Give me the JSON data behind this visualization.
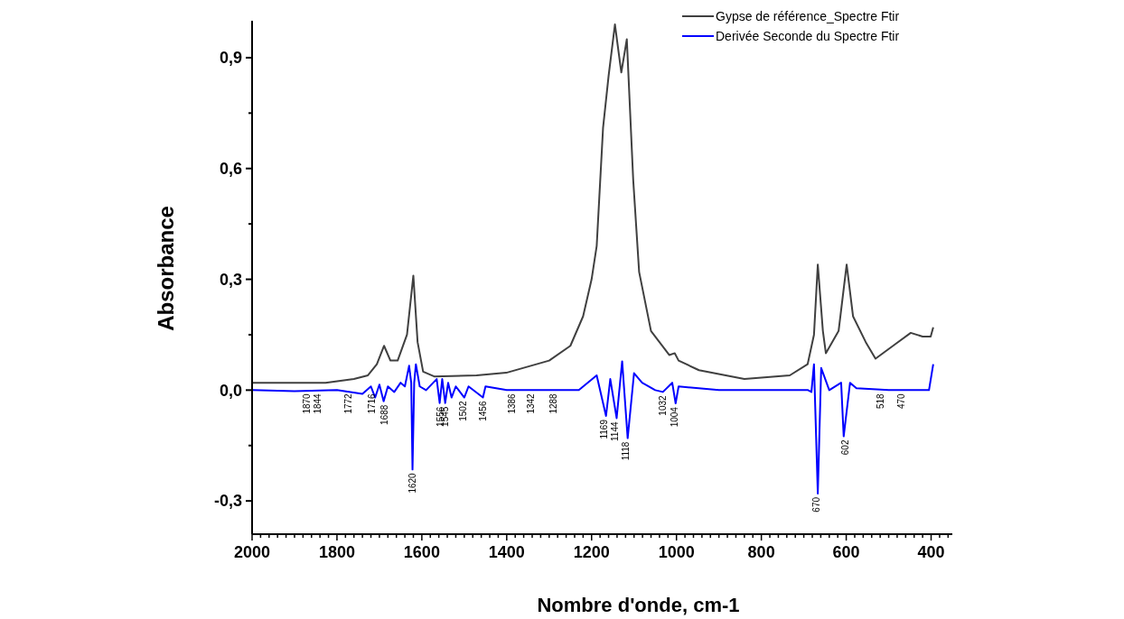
{
  "chart_data": {
    "type": "line",
    "xlabel": "Nombre d'onde, cm-1",
    "ylabel": "Absorbance",
    "xlim": [
      2000,
      350
    ],
    "ylim": [
      -0.39,
      1.0
    ],
    "xticks": [
      2000,
      {
        "value": 1980,
        "label": null
      },
      {
        "value": 1960,
        "label": null
      },
      {
        "value": 1940,
        "label": null
      },
      {
        "value": 1920,
        "label": null
      },
      {
        "value": 1900,
        "label": null
      },
      {
        "value": 1880,
        "label": null
      },
      {
        "value": 1860,
        "label": null
      },
      {
        "value": 1840,
        "label": null
      },
      {
        "value": 1820,
        "label": null
      },
      1800,
      {
        "value": 1780,
        "label": null
      },
      {
        "value": 1760,
        "label": null
      },
      {
        "value": 1740,
        "label": null
      },
      {
        "value": 1720,
        "label": null
      },
      {
        "value": 1700,
        "label": null
      },
      {
        "value": 1680,
        "label": null
      },
      {
        "value": 1660,
        "label": null
      },
      {
        "value": 1640,
        "label": null
      },
      {
        "value": 1620,
        "label": null
      },
      1600,
      {
        "value": 1580,
        "label": null
      },
      {
        "value": 1560,
        "label": null
      },
      {
        "value": 1540,
        "label": null
      },
      {
        "value": 1520,
        "label": null
      },
      {
        "value": 1500,
        "label": null
      },
      {
        "value": 1480,
        "label": null
      },
      {
        "value": 1460,
        "label": null
      },
      {
        "value": 1440,
        "label": null
      },
      {
        "value": 1420,
        "label": null
      },
      1400,
      {
        "value": 1380,
        "label": null
      },
      {
        "value": 1360,
        "label": null
      },
      {
        "value": 1340,
        "label": null
      },
      {
        "value": 1320,
        "label": null
      },
      {
        "value": 1300,
        "label": null
      },
      {
        "value": 1280,
        "label": null
      },
      {
        "value": 1260,
        "label": null
      },
      {
        "value": 1240,
        "label": null
      },
      {
        "value": 1220,
        "label": null
      },
      1200,
      {
        "value": 1180,
        "label": null
      },
      {
        "value": 1160,
        "label": null
      },
      {
        "value": 1140,
        "label": null
      },
      {
        "value": 1120,
        "label": null
      },
      {
        "value": 1100,
        "label": null
      },
      {
        "value": 1080,
        "label": null
      },
      {
        "value": 1060,
        "label": null
      },
      {
        "value": 1040,
        "label": null
      },
      {
        "value": 1020,
        "label": null
      },
      1000,
      {
        "value": 980,
        "label": null
      },
      {
        "value": 960,
        "label": null
      },
      {
        "value": 940,
        "label": null
      },
      {
        "value": 920,
        "label": null
      },
      {
        "value": 900,
        "label": null
      },
      {
        "value": 880,
        "label": null
      },
      {
        "value": 860,
        "label": null
      },
      {
        "value": 840,
        "label": null
      },
      {
        "value": 820,
        "label": null
      },
      800,
      {
        "value": 780,
        "label": null
      },
      {
        "value": 760,
        "label": null
      },
      {
        "value": 740,
        "label": null
      },
      {
        "value": 720,
        "label": null
      },
      {
        "value": 700,
        "label": null
      },
      {
        "value": 680,
        "label": null
      },
      {
        "value": 660,
        "label": null
      },
      {
        "value": 640,
        "label": null
      },
      {
        "value": 620,
        "label": null
      },
      600,
      {
        "value": 580,
        "label": null
      },
      {
        "value": 560,
        "label": null
      },
      {
        "value": 540,
        "label": null
      },
      {
        "value": 520,
        "label": null
      },
      {
        "value": 500,
        "label": null
      },
      {
        "value": 480,
        "label": null
      },
      {
        "value": 460,
        "label": null
      },
      {
        "value": 440,
        "label": null
      },
      {
        "value": 420,
        "label": null
      },
      400,
      {
        "value": 380,
        "label": null
      },
      {
        "value": 360,
        "label": null
      }
    ],
    "yticks": [
      {
        "value": -0.3,
        "label": "-0,3"
      },
      {
        "value": -0.15,
        "label": null
      },
      {
        "value": 0,
        "label": "0,0"
      },
      {
        "value": 0.15,
        "label": null
      },
      {
        "value": 0.3,
        "label": "0,3"
      },
      {
        "value": 0.45,
        "label": null
      },
      {
        "value": 0.6,
        "label": "0,6"
      },
      {
        "value": 0.75,
        "label": null
      },
      {
        "value": 0.9,
        "label": "0,9"
      }
    ],
    "legend": "top right",
    "grid": false,
    "series": [
      {
        "name": "Gypse de référence_Spectre Ftir",
        "color": "#404040",
        "x": [
          2000,
          1900,
          1827,
          1760,
          1727,
          1706,
          1689,
          1674,
          1657,
          1635,
          1620,
          1610,
          1597,
          1571,
          1471,
          1401,
          1300,
          1250,
          1220,
          1200,
          1188,
          1173,
          1160,
          1145,
          1130,
          1117,
          1102,
          1088,
          1060,
          1017,
          1004,
          995,
          947,
          840,
          733,
          691,
          676,
          667,
          655,
          648,
          618,
          599,
          584,
          554,
          531,
          484,
          448,
          420,
          401,
          395
        ],
        "values": [
          0.02,
          0.02,
          0.02,
          0.03,
          0.04,
          0.07,
          0.12,
          0.08,
          0.08,
          0.15,
          0.31,
          0.13,
          0.05,
          0.037,
          0.04,
          0.047,
          0.08,
          0.12,
          0.2,
          0.3,
          0.39,
          0.71,
          0.85,
          0.99,
          0.86,
          0.95,
          0.57,
          0.32,
          0.16,
          0.095,
          0.1,
          0.08,
          0.054,
          0.03,
          0.04,
          0.07,
          0.15,
          0.34,
          0.16,
          0.1,
          0.16,
          0.34,
          0.2,
          0.13,
          0.085,
          0.125,
          0.155,
          0.145,
          0.145,
          0.17
        ]
      },
      {
        "name": "Derivée Seconde du Spectre Ftir",
        "color": "#0000ff",
        "x": [
          2000,
          1900,
          1800,
          1740,
          1720,
          1710,
          1700,
          1690,
          1680,
          1665,
          1650,
          1640,
          1630,
          1625,
          1622,
          1618,
          1614,
          1605,
          1590,
          1565,
          1558,
          1552,
          1545,
          1538,
          1530,
          1520,
          1500,
          1490,
          1456,
          1450,
          1400,
          1300,
          1230,
          1188,
          1166,
          1156,
          1141,
          1128,
          1115,
          1100,
          1081,
          1050,
          1032,
          1010,
          1002,
          995,
          900,
          720,
          690,
          682,
          676,
          667,
          659,
          640,
          612,
          606,
          591,
          576,
          500,
          405,
          395
        ],
        "values": [
          0,
          -0.003,
          0,
          -0.01,
          0.01,
          -0.02,
          0.015,
          -0.03,
          0.01,
          -0.005,
          0.02,
          0.01,
          0.066,
          0.02,
          -0.215,
          0.02,
          0.07,
          0.01,
          0,
          0.03,
          -0.035,
          0.03,
          -0.035,
          0.02,
          -0.02,
          0.01,
          -0.02,
          0.01,
          -0.02,
          0.01,
          0,
          0,
          0,
          0.04,
          -0.07,
          0.03,
          -0.076,
          0.078,
          -0.13,
          0.046,
          0.02,
          0,
          -0.005,
          0.02,
          -0.036,
          0.01,
          0,
          0,
          0,
          -0.005,
          0.07,
          -0.28,
          0.06,
          0,
          0.02,
          -0.125,
          0.02,
          0.005,
          0,
          0,
          0.07
        ]
      }
    ],
    "annotations": [
      {
        "text": "1870",
        "x": 1870,
        "y": 0
      },
      {
        "text": "1844",
        "x": 1844,
        "y": 0
      },
      {
        "text": "1772",
        "x": 1772,
        "y": 0
      },
      {
        "text": "1716",
        "x": 1716,
        "y": 0
      },
      {
        "text": "1688",
        "x": 1688,
        "y": -0.03
      },
      {
        "text": "1620",
        "x": 1620,
        "y": -0.215
      },
      {
        "text": "1556",
        "x": 1556,
        "y": -0.035
      },
      {
        "text": "1545",
        "x": 1545,
        "y": -0.035
      },
      {
        "text": "1502",
        "x": 1502,
        "y": -0.02
      },
      {
        "text": "1456",
        "x": 1456,
        "y": -0.02
      },
      {
        "text": "1386",
        "x": 1386,
        "y": 0
      },
      {
        "text": "1342",
        "x": 1342,
        "y": 0
      },
      {
        "text": "1288",
        "x": 1288,
        "y": 0
      },
      {
        "text": "1169",
        "x": 1169,
        "y": -0.07
      },
      {
        "text": "1144",
        "x": 1144,
        "y": -0.076
      },
      {
        "text": "1118",
        "x": 1118,
        "y": -0.13
      },
      {
        "text": "1032",
        "x": 1032,
        "y": -0.005
      },
      {
        "text": "1004",
        "x": 1004,
        "y": -0.036
      },
      {
        "text": "670",
        "x": 670,
        "y": -0.28
      },
      {
        "text": "602",
        "x": 602,
        "y": -0.125
      },
      {
        "text": "518",
        "x": 518,
        "y": 0
      },
      {
        "text": "470",
        "x": 470,
        "y": 0
      }
    ]
  }
}
